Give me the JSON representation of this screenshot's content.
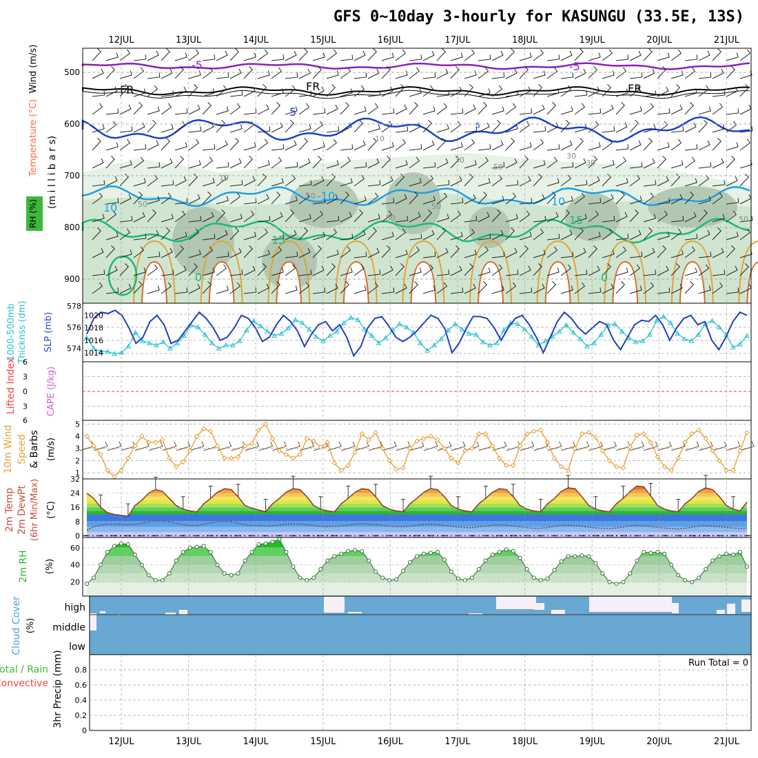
{
  "title": "GFS 0~10day 3-hourly for KASUNGU (33.5E, 13S)",
  "colors": {
    "temp_label": "#ff6a3c",
    "wind_label": "#000000",
    "rh_label": "#3cb83c",
    "thickness_label": "#29bfd1",
    "slp_label": "#2b49c8",
    "lifted_label": "#ff4040",
    "cape_label": "#d060d0",
    "wind10_label": "#e8a030",
    "temp2m_label": "#c0503c",
    "rh2m_label": "#2fb52f",
    "cloud_label": "#4aa0d8",
    "precip_total_label": "#3cb83c",
    "precip_conv_label": "#ff4040"
  },
  "dates": [
    "12JUL",
    "13JUL",
    "14JUL",
    "15JUL",
    "16JUL",
    "17JUL",
    "18JUL",
    "19JUL",
    "20JUL",
    "21JUL"
  ],
  "panels": {
    "upper": {
      "labels": [
        "Temperature",
        "(°C)",
        "Wind",
        "(m/s)",
        "RH",
        "(%)",
        "(m i l l i b a r s)"
      ],
      "ticks": [
        "500",
        "600",
        "700",
        "800",
        "900"
      ],
      "contour_labels": [
        "-5",
        "-5",
        "FR",
        "FR",
        "FR",
        "5",
        "5",
        "10",
        "-10",
        "10",
        "10",
        "15",
        "15",
        "0",
        "0",
        "10",
        "30",
        "50",
        "30",
        "30",
        "50",
        "50",
        "50",
        "50",
        "50"
      ]
    },
    "thickness": {
      "labels": [
        "1000-500mb",
        "Thicknss (dm)",
        "SLP (mb)"
      ],
      "left_ticks": [
        "578",
        "576",
        "574"
      ],
      "right_ticks": [
        "1020",
        "1018",
        "1016",
        "1014"
      ]
    },
    "cape": {
      "labels": [
        "Lifted Index",
        "CAPE (J/kg)"
      ],
      "ticks": [
        "6",
        "3",
        "0",
        "3",
        "6"
      ]
    },
    "wind10": {
      "labels": [
        "10m Wind",
        "Speed",
        "(m/s)",
        "& Barbs"
      ],
      "ticks": [
        "5",
        "4",
        "3",
        "2",
        "1"
      ]
    },
    "temp2m": {
      "labels": [
        "2m Temp",
        "2m DewPt",
        "(6hr Min/Max)",
        "(°C)"
      ],
      "ticks": [
        "32",
        "24",
        "16",
        "8",
        "0"
      ]
    },
    "rh2m": {
      "labels": [
        "2m RH",
        "(%)"
      ],
      "ticks": [
        "60",
        "40",
        "20"
      ]
    },
    "cloud": {
      "labels": [
        "Cloud Cover",
        "(%)"
      ],
      "levels": [
        "high",
        "middle",
        "low"
      ]
    },
    "precip": {
      "labels": [
        "Total / Rain",
        "Convective",
        "3hr Precip (mm)"
      ],
      "ticks": [
        "0.8",
        "0.6",
        "0.4",
        "0.2",
        "0"
      ],
      "run_total": "Run Total = 0"
    }
  },
  "chart_data": [
    {
      "type": "line",
      "panel": "1000-500mb thickness & SLP",
      "x_unit": "3-hourly steps from 11JUL 12Z",
      "series": [
        {
          "name": "SLP (mb)",
          "axis": "right",
          "values": [
            1017,
            1019.5,
            1020.5,
            1020.3,
            1020.8,
            1020,
            1018,
            1015.5,
            1016.5,
            1019,
            1020,
            1018.5,
            1015.5,
            1016,
            1017.5,
            1019,
            1020.5,
            1019.5,
            1018,
            1016,
            1016.5,
            1018,
            1020,
            1019.5,
            1018,
            1015.8,
            1016.5,
            1018.5,
            1020,
            1019,
            1017.5,
            1015,
            1017,
            1018.5,
            1019,
            1017.5,
            1018.5,
            1016.5,
            1013.5,
            1015,
            1018,
            1019.5,
            1019.8,
            1018.3,
            1016.5,
            1015.8,
            1016.5,
            1017.5,
            1018.8,
            1020,
            1019.5,
            1017.8,
            1014,
            1015.5,
            1017.8,
            1019.8,
            1019.8,
            1019.5,
            1018,
            1016,
            1018,
            1019.5,
            1020,
            1018.5,
            1016.5,
            1014,
            1016.5,
            1019,
            1020.5,
            1019.5,
            1018,
            1017,
            1018,
            1019,
            1018.5,
            1016,
            1014.5,
            1016.5,
            1018.5,
            1019.2,
            1019,
            1020,
            1018.5,
            1016,
            1018,
            1019.5,
            1020,
            1018.5,
            1019,
            1016,
            1014.5,
            1016.5,
            1019,
            1020.5,
            1020
          ]
        },
        {
          "name": "1000-500mb Thickness (dm)",
          "axis": "left",
          "values": [
            575,
            574,
            573.7,
            573.7,
            573.5,
            573.6,
            574.2,
            575.5,
            574.7,
            574.5,
            574.3,
            574.6,
            574,
            574.5,
            575.2,
            576.2,
            576,
            575.3,
            574.5,
            574,
            574.3,
            574.3,
            574.7,
            575.7,
            576.6,
            576.1,
            575.6,
            575.2,
            575.4,
            575.9,
            576.7,
            576.4,
            575.8,
            575.1,
            574.7,
            575.2,
            575.6,
            576.4,
            576.9,
            576.7,
            575.8,
            575.2,
            574.5,
            575,
            575.7,
            576.3,
            576,
            575.5,
            574.5,
            573.8,
            574.3,
            574.9,
            575.7,
            576.3,
            575.8,
            575.4,
            575.3,
            574.6,
            574.3,
            574.5,
            575.7,
            576.4,
            576.3,
            575.8,
            575.1,
            574.3,
            574.7,
            575.1,
            575.6,
            576.2,
            575.5,
            574.9,
            574.2,
            574.5,
            575.3,
            576.2,
            576.3,
            575.6,
            575,
            574.6,
            574.7,
            575.3,
            576.6,
            577,
            576.4,
            575.4,
            574.9,
            574.7,
            575.3,
            576.3,
            576.6,
            576,
            575.3,
            574.1,
            574.4,
            575.2
          ]
        }
      ],
      "ylim_left": [
        573,
        578
      ],
      "ylim_right": [
        1013,
        1021.5
      ]
    },
    {
      "type": "line",
      "panel": "10m Wind Speed (m/s)",
      "series": [
        {
          "name": "10m Wind Speed",
          "values": [
            4,
            3.2,
            2.5,
            1.2,
            0.7,
            1.2,
            2.2,
            3.2,
            4,
            3.5,
            3.5,
            3.7,
            2.2,
            1.5,
            1.9,
            2.8,
            4,
            4.6,
            4.4,
            3.2,
            2.2,
            2.2,
            2.3,
            3.2,
            3.4,
            4.5,
            5,
            3.8,
            2.8,
            2.5,
            2.2,
            2.5,
            3.8,
            3.6,
            3.1,
            3.5,
            1.8,
            1.2,
            1.6,
            2.7,
            4.2,
            3.7,
            4.3,
            3,
            2,
            1.3,
            1.4,
            3,
            3.6,
            3.8,
            4,
            3.7,
            3,
            2.2,
            1.8,
            2.8,
            3,
            4.2,
            4.2,
            3.2,
            2.2,
            1.6,
            1.6,
            3.2,
            4.2,
            4.4,
            4.5,
            3.5,
            2.2,
            1.5,
            1.2,
            3,
            4.2,
            4.3,
            3.9,
            2.8,
            2,
            1.5,
            1.4,
            3.1,
            4.1,
            4.2,
            3.5,
            2.3,
            1.5,
            1.2,
            2.2,
            3.5,
            4.2,
            4.5,
            3.8,
            2.8,
            2,
            1.2,
            1.2,
            2.8,
            4.3
          ]
        }
      ],
      "ylim": [
        0.5,
        5.3
      ]
    },
    {
      "type": "line",
      "panel": "2m Temp / DewPt (°C)",
      "series": [
        {
          "name": "2m Temp",
          "values": [
            24,
            21,
            16,
            13,
            12,
            11.5,
            11,
            17,
            20,
            24,
            26,
            25,
            21,
            17,
            15,
            14,
            13.5,
            18,
            21,
            24.5,
            26.5,
            26,
            22,
            17,
            15.5,
            14.5,
            13.5,
            18,
            21,
            24.5,
            26.5,
            26,
            22,
            17,
            15,
            14,
            13.5,
            18,
            21,
            24.5,
            26.5,
            26,
            22,
            17,
            15,
            14,
            13.5,
            18,
            21,
            24.5,
            26.5,
            26,
            22,
            17,
            15,
            14,
            13.5,
            18,
            21,
            24.5,
            26.5,
            26,
            22,
            17,
            15,
            14,
            13.5,
            18,
            21,
            25,
            27,
            26.5,
            22,
            17,
            15,
            14,
            13.5,
            18,
            21,
            25,
            28,
            27.5,
            22.5,
            17,
            15,
            14,
            13.5,
            18,
            21,
            25,
            27,
            26,
            22,
            17,
            15,
            14,
            19
          ]
        },
        {
          "name": "2m DewPt",
          "values": [
            3,
            5,
            6,
            6.5,
            6.5,
            6.5,
            6.2,
            6.3,
            7,
            7.6,
            8.2,
            8,
            7.8,
            7,
            6.2,
            5.8,
            5.6,
            6.5,
            7.3,
            7.9,
            8,
            7.8,
            7.2,
            6.2,
            5.6,
            5.8,
            5.4,
            5.6,
            6,
            6.5,
            6.7,
            6.5,
            6.2,
            5.8,
            5.2,
            5,
            5.2,
            5.5,
            6,
            6.5,
            6.8,
            6.5,
            6.3,
            5.8,
            5.4,
            5.1,
            5,
            5.4,
            5.9,
            6.3,
            6.5,
            6.2,
            5.8,
            5.3,
            4.9,
            4.6,
            4.5,
            5,
            5.4,
            5.9,
            6.1,
            5.9,
            5.4,
            5,
            4.6,
            4.2,
            4.2,
            4.6,
            5.3,
            5.8,
            5.9,
            5.7,
            5.3,
            4.8,
            4.4,
            4.2,
            4,
            4.3,
            4.9,
            5.5,
            5.8,
            5.6,
            5.2,
            4.7,
            4.3,
            4,
            3.8,
            4.2,
            4.8,
            5.4,
            5.6,
            5.4,
            5.1,
            4.7,
            4.3,
            4.1,
            4.3
          ]
        }
      ],
      "ylim": [
        -1,
        32
      ]
    },
    {
      "type": "area",
      "panel": "2m RH (%)",
      "series": [
        {
          "name": "2m RH",
          "values": [
            18,
            25,
            40,
            55,
            62,
            65,
            64,
            52,
            40,
            28,
            22,
            22,
            30,
            45,
            55,
            60,
            61,
            62,
            55,
            40,
            30,
            28,
            30,
            45,
            55,
            64,
            65,
            67,
            70,
            55,
            38,
            25,
            22,
            25,
            35,
            45,
            50,
            53,
            56,
            57,
            56,
            45,
            32,
            25,
            22,
            23,
            33,
            43,
            50,
            53,
            54,
            55,
            46,
            32,
            24,
            22,
            25,
            35,
            45,
            52,
            55,
            58,
            56,
            48,
            35,
            25,
            22,
            24,
            34,
            44,
            50,
            50,
            51,
            50,
            42,
            30,
            20,
            18,
            20,
            30,
            45,
            55,
            54,
            55,
            53,
            40,
            28,
            22,
            20,
            25,
            35,
            45,
            50,
            53,
            52,
            55,
            38
          ]
        }
      ],
      "ylim": [
        10,
        72
      ]
    },
    {
      "type": "bar",
      "panel": "3hr Precip (mm)",
      "series": [
        {
          "name": "Total / Rain",
          "values": []
        },
        {
          "name": "Convective",
          "values": []
        }
      ],
      "ylim": [
        0,
        1
      ]
    }
  ]
}
